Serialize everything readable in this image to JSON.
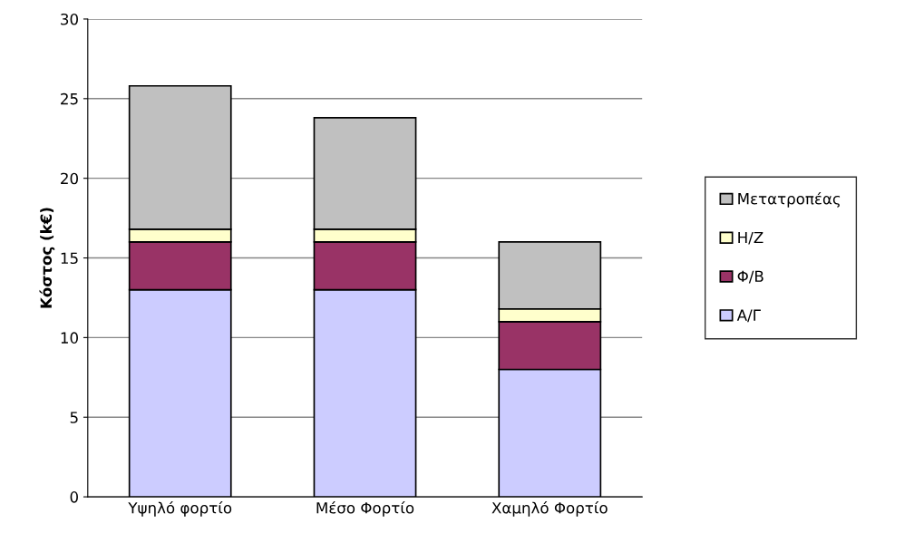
{
  "chart_data": {
    "type": "bar",
    "stacked": true,
    "ylabel": "Κόστος (k€)",
    "categories": [
      "Υψηλό φορτίο",
      "Μέσο Φορτίο",
      "Χαμηλό Φορτίο"
    ],
    "series": [
      {
        "name": "Α/Γ",
        "color": "#ccccff",
        "values": [
          13,
          13,
          8
        ]
      },
      {
        "name": "Φ/Β",
        "color": "#993366",
        "values": [
          3,
          3,
          3
        ]
      },
      {
        "name": "Η/Ζ",
        "color": "#ffffcc",
        "values": [
          0.8,
          0.8,
          0.8
        ]
      },
      {
        "name": "Μετατροπέας",
        "color": "#c0c0c0",
        "values": [
          9.0,
          7.0,
          4.2
        ]
      }
    ],
    "ylim": [
      0,
      30
    ],
    "yticks": [
      0,
      5,
      10,
      15,
      20,
      25,
      30
    ],
    "grid": "y",
    "legend": "right"
  }
}
